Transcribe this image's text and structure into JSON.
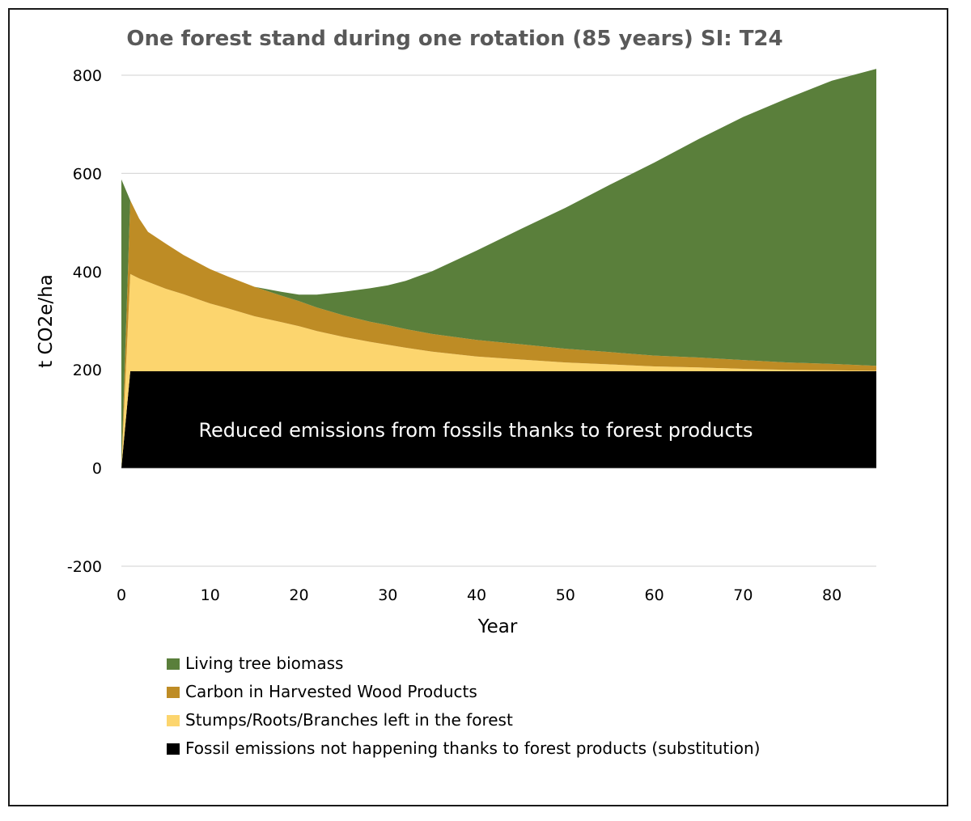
{
  "chart_data": {
    "type": "area",
    "stacked": true,
    "title": "One forest stand during one rotation (85 years) SI: T24",
    "xlabel": "Year",
    "ylabel": "t CO2e/ha",
    "xlim": [
      0,
      85
    ],
    "ylim": [
      -200,
      800
    ],
    "x_ticks": [
      0,
      10,
      20,
      30,
      40,
      50,
      60,
      70,
      80
    ],
    "y_ticks": [
      -200,
      0,
      200,
      400,
      600,
      800
    ],
    "grid": "horizontal",
    "legend_position": "bottom",
    "annotation": "Reduced emissions from fossils thanks to forest products",
    "x": [
      0,
      1,
      2,
      3,
      5,
      7,
      10,
      12,
      15,
      18,
      20,
      22,
      25,
      28,
      30,
      32,
      35,
      40,
      45,
      50,
      55,
      60,
      65,
      70,
      75,
      80,
      85
    ],
    "series": [
      {
        "name": "Fossil emissions not happening thanks to forest products (substitution)",
        "color": "#000000",
        "values": [
          0,
          197,
          197,
          197,
          197,
          197,
          197,
          197,
          197,
          197,
          197,
          197,
          197,
          197,
          197,
          197,
          197,
          197,
          197,
          197,
          197,
          197,
          197,
          197,
          197,
          197,
          197
        ]
      },
      {
        "name": "Stumps/Roots/Branches left in the forest",
        "color": "#FCD56E",
        "values": [
          0,
          198,
          189,
          182,
          168,
          157,
          138,
          128,
          112,
          100,
          92,
          82,
          70,
          60,
          54,
          48,
          40,
          30,
          24,
          18,
          14,
          10,
          8,
          5,
          3,
          2,
          1
        ]
      },
      {
        "name": "Carbon in Harvested Wood Products",
        "color": "#BE8C25",
        "values": [
          0,
          150,
          122,
          102,
          92,
          80,
          70,
          65,
          60,
          54,
          51,
          48,
          44,
          41,
          40,
          38,
          36,
          34,
          31,
          28,
          25,
          22,
          20,
          18,
          15,
          13,
          10
        ]
      },
      {
        "name": "Living tree biomass",
        "color": "#5A7F3B",
        "values": [
          588,
          0,
          0,
          0,
          0,
          0,
          0,
          0,
          0,
          8,
          13,
          26,
          48,
          68,
          81,
          98,
          128,
          182,
          235,
          287,
          341,
          393,
          445,
          495,
          538,
          577,
          605
        ]
      }
    ],
    "legend_order": [
      "Living tree biomass",
      "Carbon in Harvested Wood Products",
      "Stumps/Roots/Branches left in the forest",
      "Fossil emissions not happening thanks to forest products (substitution)"
    ]
  }
}
